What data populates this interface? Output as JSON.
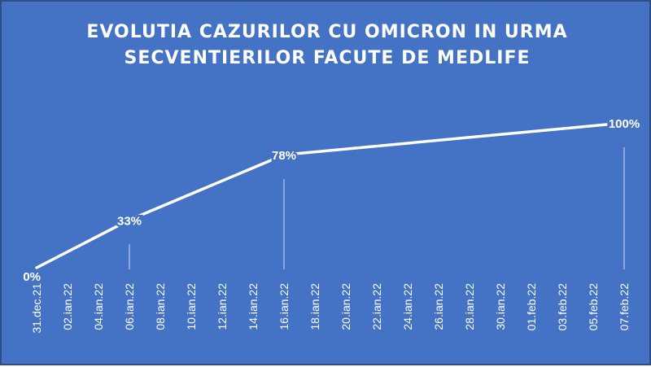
{
  "chart_data": {
    "type": "line",
    "title_lines": [
      "EVOLUTIA CAZURILOR CU OMICRON IN URMA",
      "SECVENTIERILOR FACUTE DE MEDLIFE"
    ],
    "categories": [
      "31.dec.21",
      "02.ian.22",
      "04.ian.22",
      "06.ian.22",
      "08.ian.22",
      "10.ian.22",
      "12.ian.22",
      "14.ian.22",
      "16.ian.22",
      "18.ian.22",
      "20.ian.22",
      "22.ian.22",
      "24.ian.22",
      "26.ian.22",
      "28.ian.22",
      "30.ian.22",
      "01.feb.22",
      "03.feb.22",
      "05.feb.22",
      "07.feb.22"
    ],
    "series": [
      {
        "points": [
          {
            "date": "31.dec.21",
            "value": 0,
            "label": "0%"
          },
          {
            "date": "06.ian.22",
            "value": 33,
            "label": "33%"
          },
          {
            "date": "16.ian.22",
            "value": 78,
            "label": "78%"
          },
          {
            "date": "07.feb.22",
            "value": 100,
            "label": "100%"
          }
        ]
      }
    ],
    "ylim": [
      0,
      100
    ],
    "grid": false,
    "legend": "none",
    "colors": {
      "background": "#4472c4",
      "line": "#ffffff",
      "text": "#ffffff",
      "border": "#2c4f86"
    }
  }
}
